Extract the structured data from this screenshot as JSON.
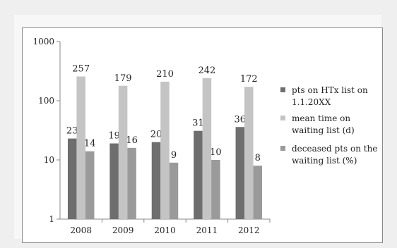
{
  "chart_data": {
    "type": "bar",
    "yscale": "log",
    "ylim": [
      1,
      1000
    ],
    "yticks": [
      "1",
      "10",
      "100",
      "1000"
    ],
    "categories": [
      "2008",
      "2009",
      "2010",
      "2011",
      "2012"
    ],
    "series": [
      {
        "name": "pts on HTx list on 1.1.20XX",
        "values": [
          23,
          19,
          20,
          31,
          36
        ],
        "color": "#6e6e6e"
      },
      {
        "name": "mean time on waiting list (d)",
        "values": [
          257,
          179,
          210,
          242,
          172
        ],
        "color": "#c4c4c4"
      },
      {
        "name": "deceased pts on the waiting list (%)",
        "values": [
          14,
          16,
          9,
          10,
          8
        ],
        "color": "#9a9a9a"
      }
    ],
    "legend": [
      [
        "pts on HTx list on",
        "1.1.20XX"
      ],
      [
        "mean time on",
        "waiting list (d)"
      ],
      [
        "deceased pts on the",
        "waiting list (%)"
      ]
    ],
    "legend_position": "right",
    "grid": false,
    "title": "",
    "xlabel": "",
    "ylabel": ""
  }
}
